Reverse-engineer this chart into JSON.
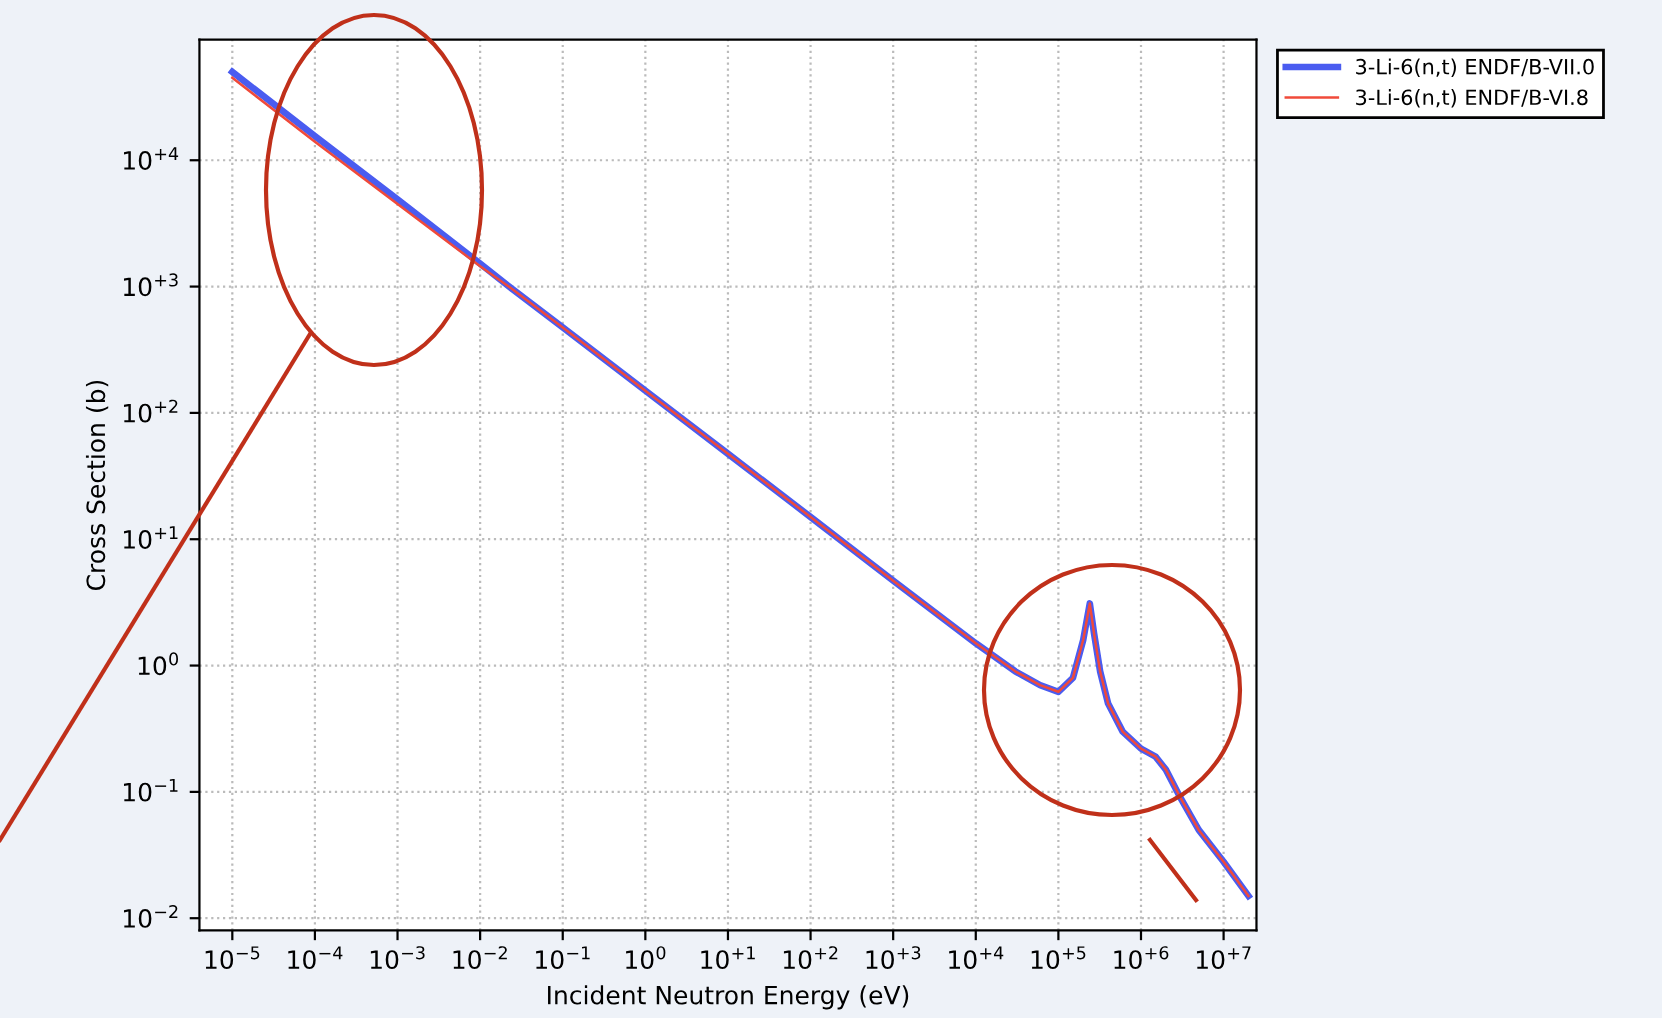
{
  "chart_data": {
    "type": "line",
    "xlabel": "Incident Neutron Energy (eV)",
    "ylabel": "Cross Section (b)",
    "log": "xy",
    "grid": true,
    "legend": "top right",
    "line_style": "solid",
    "marker": "none",
    "xlim": [
      4e-06,
      25000000.0
    ],
    "ylim": [
      0.008,
      90000
    ],
    "xticks": [
      {
        "value": 1e-05,
        "label": "10$^{−5}$"
      },
      {
        "value": 0.0001,
        "label": "10$^{−4}$"
      },
      {
        "value": 0.001,
        "label": "10$^{−3}$"
      },
      {
        "value": 0.01,
        "label": "10$^{−2}$"
      },
      {
        "value": 0.1,
        "label": "10$^{−1}$"
      },
      {
        "value": 1,
        "label": "10$^{0}$"
      },
      {
        "value": 10,
        "label": "10$^{+1}$"
      },
      {
        "value": 100,
        "label": "10$^{+2}$"
      },
      {
        "value": 1000,
        "label": "10$^{+3}$"
      },
      {
        "value": 10000,
        "label": "10$^{+4}$"
      },
      {
        "value": 100000,
        "label": "10$^{+5}$"
      },
      {
        "value": 1000000,
        "label": "10$^{+6}$"
      },
      {
        "value": 10000000,
        "label": "10$^{+7}$"
      }
    ],
    "yticks": [
      {
        "value": 0.01,
        "label": "10$^{−2}$"
      },
      {
        "value": 0.1,
        "label": "10$^{−1}$"
      },
      {
        "value": 1,
        "label": "10$^{0}$"
      },
      {
        "value": 10,
        "label": "10$^{+1}$"
      },
      {
        "value": 100,
        "label": "10$^{+2}$"
      },
      {
        "value": 1000,
        "label": "10$^{+3}$"
      },
      {
        "value": 10000,
        "label": "10$^{+4}$"
      }
    ],
    "series": [
      {
        "name": "3-Li-6(n,t) ENDF/B-VII.0",
        "color": "#4a5cf0",
        "x": [
          1e-05,
          0.0001,
          0.001,
          0.01,
          0.0253,
          0.1,
          1,
          10,
          100,
          1000,
          10000,
          30000,
          60000,
          100000,
          150000,
          200000,
          240000,
          270000,
          320000,
          400000,
          600000,
          1000000,
          1500000,
          2000000,
          3000000,
          5000000,
          10000000,
          20000000
        ],
        "values": [
          50000,
          15500,
          4900,
          1520,
          940,
          475,
          150,
          47.5,
          15,
          4.7,
          1.5,
          0.9,
          0.7,
          0.62,
          0.8,
          1.6,
          3.1,
          1.8,
          0.9,
          0.5,
          0.3,
          0.22,
          0.19,
          0.15,
          0.09,
          0.05,
          0.028,
          0.015
        ]
      },
      {
        "name": "3-Li-6(n,t) ENDF/B-VI.8",
        "color": "#f04a3a",
        "x": [
          1e-05,
          0.0001,
          0.001,
          0.01,
          0.0253,
          0.1,
          1,
          10,
          100,
          1000,
          10000,
          30000,
          60000,
          100000,
          150000,
          200000,
          240000,
          270000,
          320000,
          400000,
          600000,
          1000000,
          1500000,
          2000000,
          3000000,
          5000000,
          10000000,
          20000000
        ],
        "values": [
          45000,
          14000,
          4500,
          1450,
          940,
          475,
          150,
          47.5,
          15,
          4.7,
          1.5,
          0.9,
          0.7,
          0.62,
          0.8,
          1.6,
          3.1,
          1.8,
          0.9,
          0.5,
          0.3,
          0.22,
          0.19,
          0.15,
          0.09,
          0.05,
          0.028,
          0.015
        ]
      }
    ]
  }
}
